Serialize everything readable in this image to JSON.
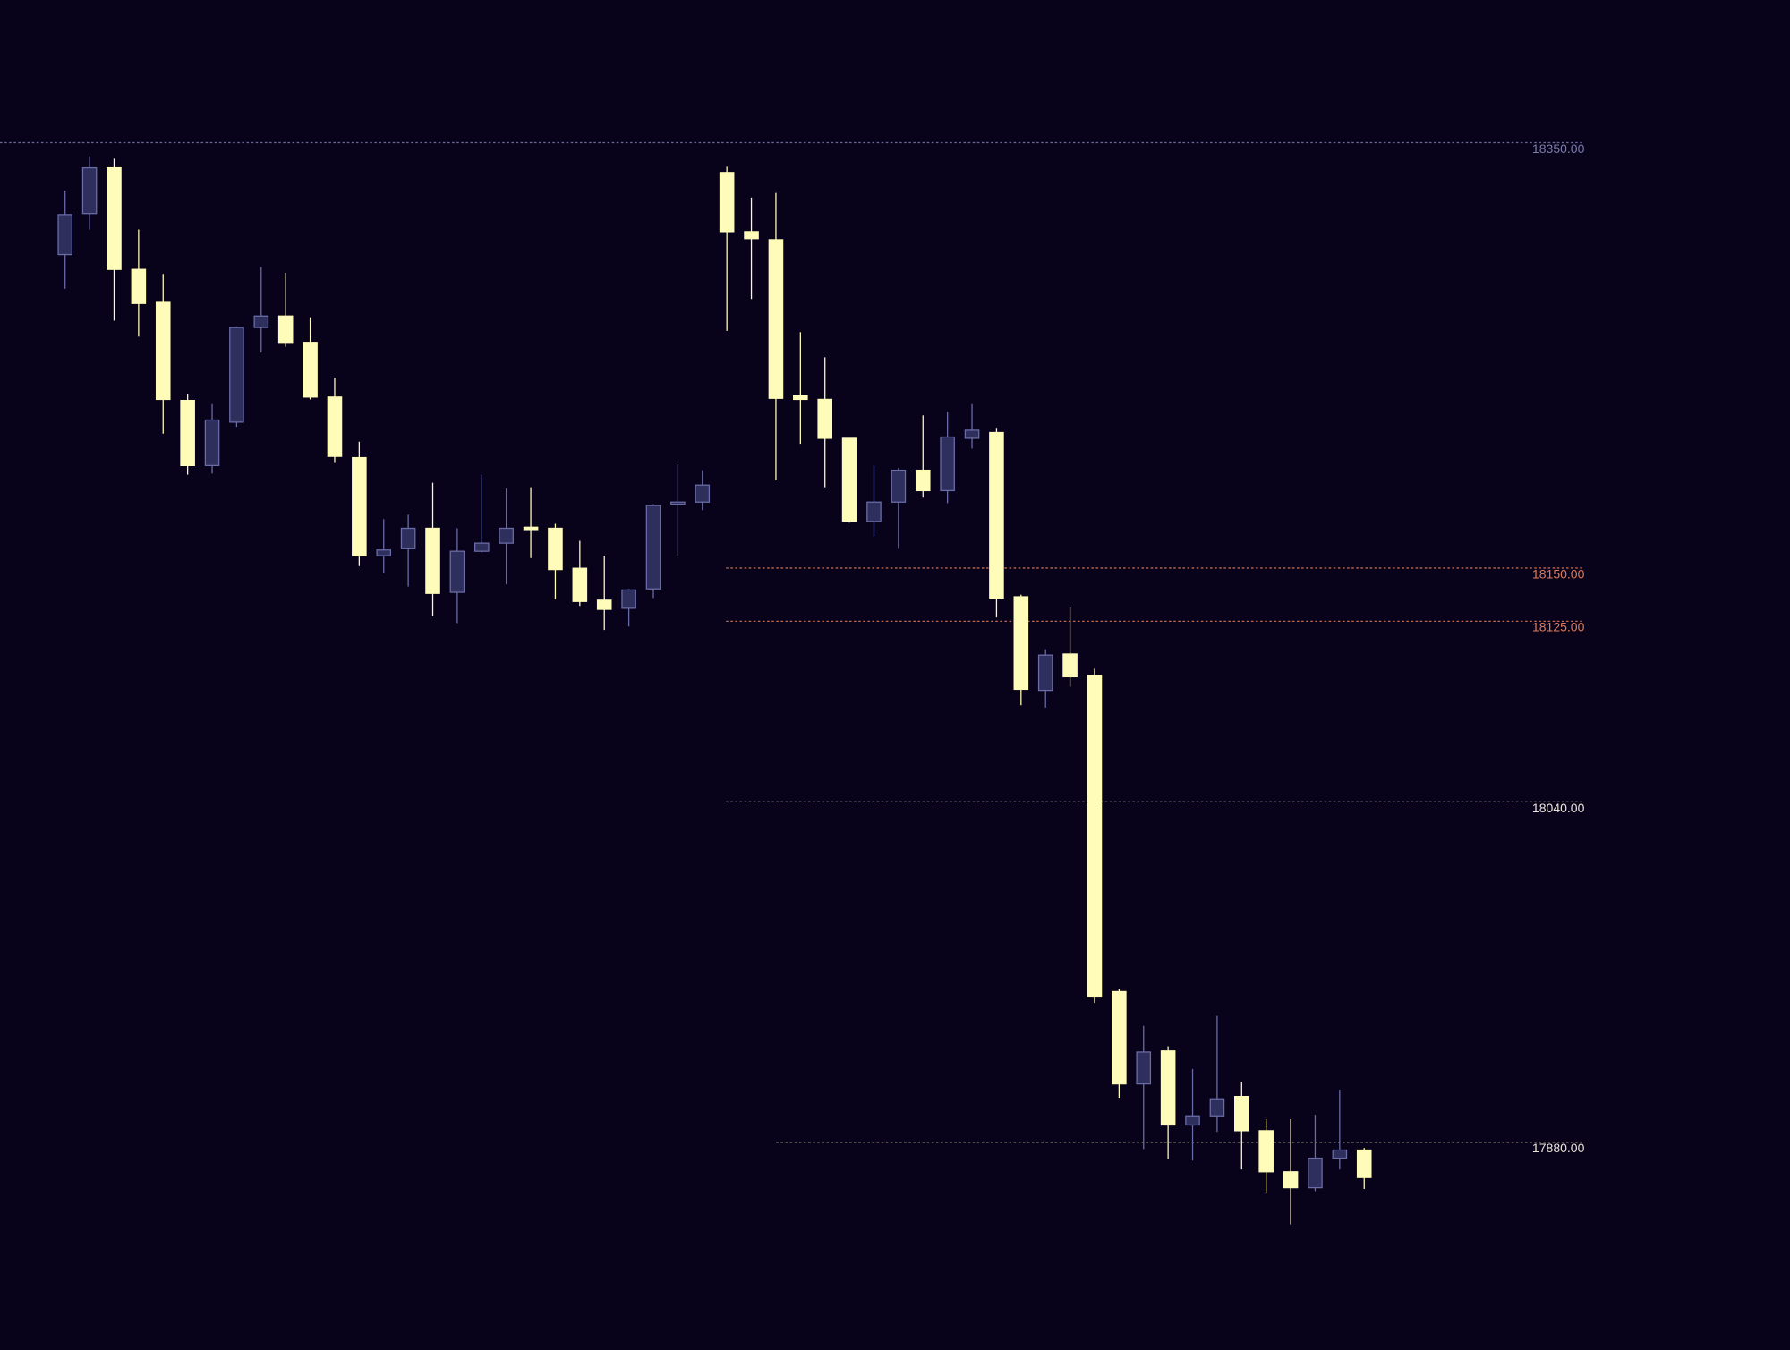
{
  "chart_data": {
    "type": "candlestick",
    "up_color": "#2e2f5c",
    "up_border": "#6a6ca8",
    "down_color": "#fffbb8",
    "ylim": [
      17782.3,
      18417.1
    ],
    "open": [
      18297.4,
      18316.7,
      18338.2,
      18290.4,
      18274.9,
      18228.8,
      18198.2,
      18218.6,
      18263.1,
      18268.5,
      18256.1,
      18230.4,
      18201.9,
      18155.8,
      18159.1,
      18168.7,
      18138.6,
      18157.9,
      18161.7,
      18169.2,
      18168.7,
      18149.9,
      18134.9,
      18131.1,
      18140.2,
      18180.0,
      18181.0,
      18336.0,
      18308.2,
      18304.4,
      18230.9,
      18229.3,
      18211.0,
      18171.9,
      18181.0,
      18196.0,
      18186.4,
      18211.0,
      18213.7,
      18136.5,
      18092.5,
      18109.6,
      18099.5,
      17950.8,
      17907.4,
      17922.9,
      17888.1,
      17892.4,
      17901.5,
      17885.4,
      17866.1,
      17858.6,
      17872.5,
      17876.3
    ],
    "high": [
      18327.5,
      18343.6,
      18342.5,
      18309.2,
      18288.3,
      18232.0,
      18227.1,
      18263.6,
      18291.5,
      18288.8,
      18267.9,
      18239.5,
      18209.4,
      18173.0,
      18175.1,
      18190.1,
      18168.7,
      18193.9,
      18187.4,
      18188.0,
      18170.8,
      18162.8,
      18155.8,
      18140.2,
      18180.0,
      18198.7,
      18196.0,
      18338.7,
      18324.2,
      18326.4,
      18260.9,
      18249.1,
      18211.0,
      18198.2,
      18197.1,
      18221.8,
      18223.4,
      18227.1,
      18215.9,
      18137.5,
      18111.8,
      18131.6,
      18102.7,
      17951.9,
      17934.7,
      17925.1,
      17914.4,
      17939.4,
      17908.5,
      17890.8,
      17890.8,
      17892.9,
      17904.7,
      17877.3
    ],
    "low": [
      18281.3,
      18309.2,
      18266.3,
      18258.8,
      18213.2,
      18193.9,
      18194.4,
      18216.4,
      18251.3,
      18254.0,
      18229.3,
      18199.8,
      18150.9,
      18147.7,
      18141.3,
      18127.4,
      18124.1,
      18157.4,
      18142.4,
      18154.7,
      18135.4,
      18132.2,
      18120.9,
      18122.5,
      18135.9,
      18155.8,
      18177.2,
      18261.5,
      18276.5,
      18191.2,
      18208.4,
      18188.0,
      18171.3,
      18164.9,
      18159.0,
      18183.1,
      18180.5,
      18206.2,
      18126.8,
      18085.5,
      18084.4,
      18094.1,
      17945.5,
      17900.9,
      17876.8,
      17872.0,
      17871.4,
      17884.9,
      17867.2,
      17856.4,
      17841.4,
      17857.0,
      17867.2,
      17858.0
    ],
    "close": [
      18316.2,
      18338.2,
      18290.4,
      18274.4,
      18229.3,
      18198.2,
      18219.6,
      18263.1,
      18268.5,
      18256.1,
      18230.4,
      18202.5,
      18155.8,
      18158.5,
      18168.7,
      18138.1,
      18157.9,
      18161.7,
      18168.7,
      18168.1,
      18149.3,
      18134.3,
      18130.6,
      18139.7,
      18179.4,
      18181.0,
      18189.0,
      18308.2,
      18304.9,
      18229.8,
      18229.3,
      18211.0,
      18171.9,
      18181.0,
      18196.0,
      18186.4,
      18211.6,
      18214.8,
      18135.9,
      18093.0,
      18109.1,
      18098.9,
      17948.7,
      17907.4,
      17922.4,
      17888.1,
      17892.4,
      17900.4,
      17885.4,
      17866.1,
      17858.6,
      17872.5,
      17876.3,
      17863.4
    ],
    "yticks": [
      {
        "value": 18350,
        "label": "18350.00",
        "color": "#7a7cb0"
      },
      {
        "value": 18150,
        "label": "18150.00",
        "color": "#e07a5a"
      },
      {
        "value": 18125,
        "label": "18125.00",
        "color": "#e07a5a"
      },
      {
        "value": 18040,
        "label": "18040.00",
        "color": "#e8e4d8"
      },
      {
        "value": 17880,
        "label": "17880.00",
        "color": "#e8e4d8"
      }
    ]
  }
}
